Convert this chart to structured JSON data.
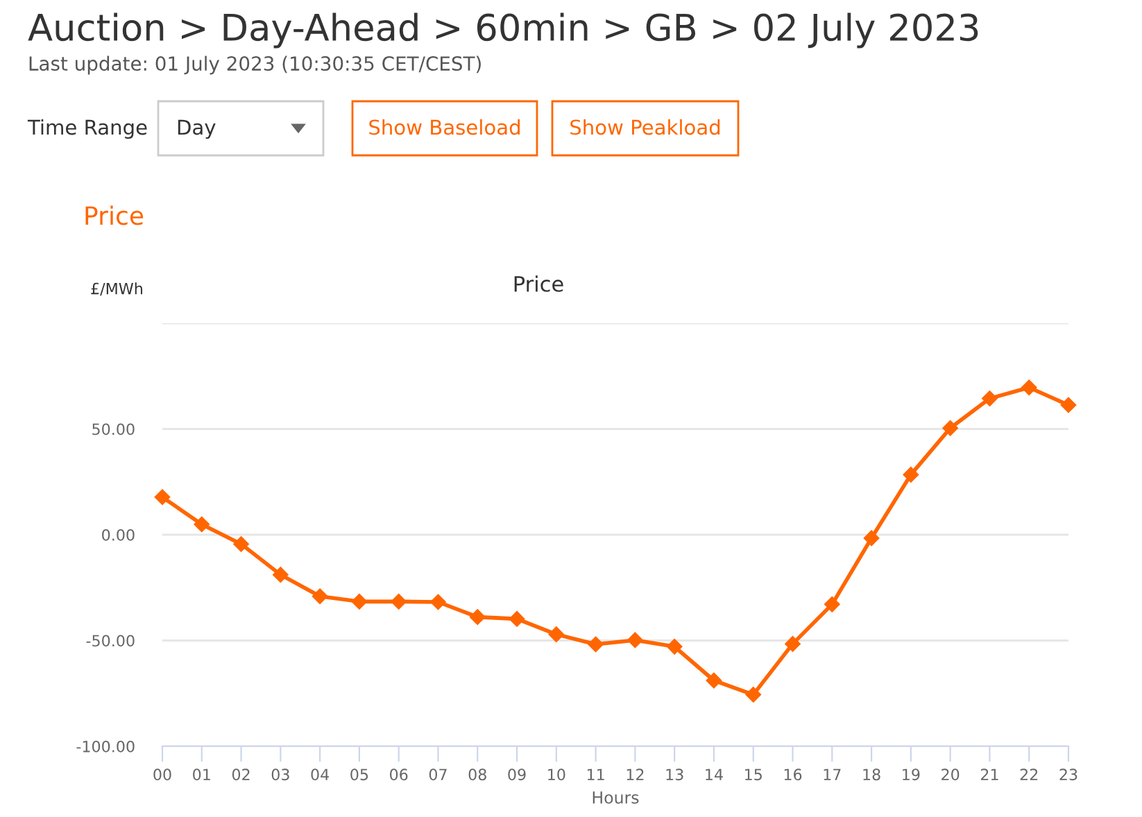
{
  "chart_data": {
    "type": "line",
    "title": "Price",
    "xlabel": "Hours",
    "ylabel": "£/MWh",
    "annotations": [
      "Auction > Day-Ahead > 60min > GB > 02 July 2023",
      "Last update: 01 July 2023 (10:30:35 CET/CEST)",
      "Time Range",
      "Day",
      "Show Baseload",
      "Show Peakload",
      "Price"
    ],
    "categories": [
      "00",
      "01",
      "02",
      "03",
      "04",
      "05",
      "06",
      "07",
      "08",
      "09",
      "10",
      "11",
      "12",
      "13",
      "14",
      "15",
      "16",
      "17",
      "18",
      "19",
      "20",
      "21",
      "22",
      "23"
    ],
    "series": [
      {
        "color": "#ff6600",
        "values": [
          17.8,
          4.9,
          -4.4,
          -18.9,
          -29.1,
          -31.6,
          -31.6,
          -31.8,
          -38.9,
          -39.8,
          -47.1,
          -51.8,
          -49.8,
          -52.9,
          -68.9,
          -75.6,
          -51.6,
          -32.9,
          -1.6,
          28.4,
          50.4,
          64.4,
          69.6,
          61.3
        ]
      }
    ],
    "ylim": [
      -100,
      100
    ],
    "yticks": [
      {
        "value": -100,
        "label": "-100.00"
      },
      {
        "value": -50,
        "label": "-50.00"
      },
      {
        "value": 0,
        "label": "0.00"
      },
      {
        "value": 50,
        "label": "50.00"
      },
      {
        "value": 100,
        "label": null
      }
    ],
    "grid": "y",
    "legend": false,
    "marker": "diamond",
    "line_style": "solid"
  }
}
